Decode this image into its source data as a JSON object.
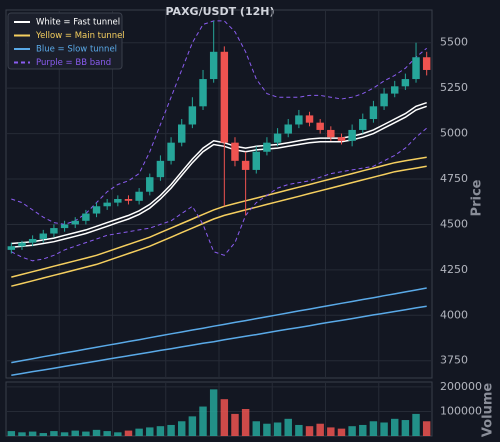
{
  "chart_data": [
    {
      "type": "candlestick",
      "title": "PAXG/USDT (12H)",
      "ylabel": "Price",
      "ylim": [
        3655,
        5680
      ],
      "yticks": [
        3750,
        4000,
        4250,
        4500,
        4750,
        5000,
        5250,
        5500
      ],
      "grid": true,
      "legend": "upper left",
      "up_color": "#26a69a",
      "down_color": "#ef5350",
      "open": [
        4360,
        4380,
        4400,
        4420,
        4450,
        4480,
        4500,
        4520,
        4560,
        4600,
        4620,
        4640,
        4630,
        4680,
        4760,
        4850,
        4950,
        5050,
        5150,
        5300,
        5450,
        4950,
        4850,
        4800,
        4900,
        4950,
        5000,
        5050,
        5100,
        5060,
        5020,
        4980,
        4960,
        5020,
        5080,
        5150,
        5220,
        5260,
        5300,
        5420
      ],
      "high": [
        4400,
        4410,
        4440,
        4470,
        4500,
        4520,
        4540,
        4580,
        4620,
        4640,
        4660,
        4660,
        4700,
        4780,
        4880,
        4980,
        5080,
        5200,
        5350,
        5620,
        5480,
        4980,
        4900,
        4930,
        4980,
        5030,
        5080,
        5130,
        5120,
        5080,
        5040,
        5000,
        5050,
        5110,
        5180,
        5250,
        5290,
        5330,
        5500,
        5450
      ],
      "low": [
        4340,
        4360,
        4380,
        4400,
        4430,
        4460,
        4480,
        4500,
        4540,
        4580,
        4600,
        4610,
        4610,
        4660,
        4740,
        4830,
        4930,
        5030,
        5130,
        5280,
        4600,
        4820,
        4550,
        4780,
        4880,
        4930,
        4980,
        5030,
        5040,
        5000,
        4960,
        4940,
        4930,
        5000,
        5060,
        5130,
        5200,
        5240,
        5280,
        5320
      ],
      "close": [
        4380,
        4400,
        4420,
        4450,
        4480,
        4500,
        4520,
        4560,
        4600,
        4620,
        4640,
        4630,
        4680,
        4760,
        4850,
        4950,
        5050,
        5150,
        5300,
        5450,
        4950,
        4850,
        4800,
        4900,
        4950,
        5000,
        5050,
        5100,
        5060,
        5020,
        4980,
        4960,
        5020,
        5080,
        5150,
        5220,
        5260,
        5300,
        5420,
        5350
      ],
      "series": [
        {
          "name": "White = Fast tunnel",
          "color": "#ffffff",
          "dash": false,
          "values": [
            4395,
            4400,
            4405,
            4415,
            4425,
            4440,
            4455,
            4470,
            4490,
            4510,
            4530,
            4550,
            4575,
            4610,
            4660,
            4720,
            4790,
            4860,
            4920,
            4960,
            4950,
            4930,
            4920,
            4930,
            4935,
            4940,
            4950,
            4960,
            4970,
            4975,
            4975,
            4975,
            4985,
            5000,
            5020,
            5050,
            5080,
            5110,
            5150,
            5170
          ],
          "lower": [
            4375,
            4380,
            4385,
            4395,
            4405,
            4420,
            4435,
            4450,
            4470,
            4490,
            4510,
            4530,
            4555,
            4590,
            4640,
            4700,
            4770,
            4840,
            4900,
            4940,
            4930,
            4910,
            4900,
            4910,
            4915,
            4920,
            4930,
            4940,
            4950,
            4955,
            4955,
            4955,
            4965,
            4980,
            5000,
            5030,
            5060,
            5090,
            5130,
            5150
          ]
        },
        {
          "name": "Yellow = Main tunnel",
          "color": "#f5cf5f",
          "dash": false,
          "values": [
            4210,
            4225,
            4240,
            4255,
            4270,
            4285,
            4300,
            4315,
            4330,
            4350,
            4370,
            4390,
            4410,
            4430,
            4455,
            4480,
            4505,
            4530,
            4555,
            4580,
            4600,
            4615,
            4630,
            4645,
            4660,
            4675,
            4690,
            4705,
            4720,
            4735,
            4750,
            4765,
            4780,
            4795,
            4810,
            4825,
            4840,
            4850,
            4860,
            4870
          ],
          "lower": [
            4160,
            4175,
            4190,
            4205,
            4220,
            4235,
            4250,
            4265,
            4280,
            4300,
            4320,
            4340,
            4360,
            4380,
            4405,
            4430,
            4455,
            4480,
            4505,
            4530,
            4550,
            4565,
            4580,
            4595,
            4610,
            4625,
            4640,
            4655,
            4670,
            4685,
            4700,
            4715,
            4730,
            4745,
            4760,
            4775,
            4790,
            4800,
            4810,
            4820
          ]
        },
        {
          "name": "Blue = Slow tunnel",
          "color": "#5aaae8",
          "dash": false,
          "values": [
            3740,
            3751,
            3761,
            3772,
            3782,
            3793,
            3803,
            3814,
            3824,
            3835,
            3845,
            3856,
            3866,
            3877,
            3887,
            3898,
            3908,
            3919,
            3929,
            3940,
            3950,
            3961,
            3971,
            3982,
            3992,
            4003,
            4013,
            4024,
            4034,
            4045,
            4055,
            4066,
            4076,
            4087,
            4097,
            4108,
            4118,
            4129,
            4139,
            4150
          ],
          "lower": [
            3670,
            3680,
            3690,
            3699,
            3709,
            3719,
            3729,
            3738,
            3748,
            3758,
            3768,
            3777,
            3787,
            3797,
            3807,
            3816,
            3826,
            3836,
            3846,
            3855,
            3865,
            3875,
            3885,
            3894,
            3904,
            3914,
            3924,
            3933,
            3943,
            3953,
            3963,
            3972,
            3982,
            3992,
            4002,
            4011,
            4021,
            4031,
            4041,
            4050
          ]
        },
        {
          "name": "Purple = BB band",
          "color": "#8a5cf0",
          "dash": true,
          "values": [
            4640,
            4620,
            4580,
            4540,
            4510,
            4500,
            4520,
            4560,
            4620,
            4680,
            4720,
            4740,
            4780,
            4900,
            5050,
            5200,
            5350,
            5500,
            5600,
            5620,
            5620,
            5560,
            5450,
            5300,
            5220,
            5200,
            5200,
            5200,
            5210,
            5210,
            5200,
            5190,
            5200,
            5220,
            5250,
            5290,
            5320,
            5360,
            5420,
            5470
          ],
          "lower": [
            4350,
            4320,
            4300,
            4310,
            4330,
            4360,
            4380,
            4400,
            4420,
            4440,
            4450,
            4460,
            4470,
            4480,
            4500,
            4520,
            4560,
            4600,
            4500,
            4350,
            4330,
            4400,
            4550,
            4620,
            4660,
            4700,
            4720,
            4730,
            4740,
            4760,
            4780,
            4790,
            4800,
            4810,
            4820,
            4850,
            4880,
            4920,
            4980,
            5030
          ]
        }
      ]
    },
    {
      "type": "bar",
      "ylabel": "Volume",
      "ylim": [
        0,
        220000
      ],
      "yticks": [
        100000,
        200000
      ],
      "grid": true,
      "values": [
        20000,
        15000,
        18000,
        12000,
        20000,
        15000,
        22000,
        18000,
        25000,
        20000,
        15000,
        22000,
        30000,
        35000,
        40000,
        45000,
        60000,
        80000,
        120000,
        190000,
        150000,
        90000,
        110000,
        60000,
        50000,
        55000,
        70000,
        45000,
        40000,
        50000,
        35000,
        30000,
        40000,
        45000,
        60000,
        55000,
        70000,
        65000,
        90000,
        60000
      ]
    }
  ]
}
